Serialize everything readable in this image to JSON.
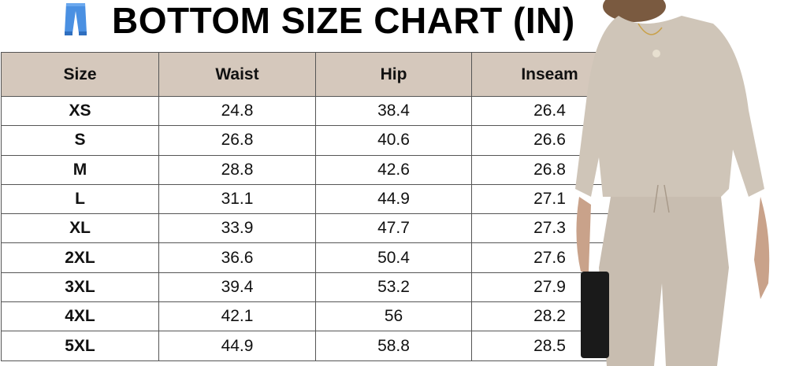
{
  "title": "BOTTOM SIZE CHART (IN)",
  "title_icon": "jeans-icon",
  "colors": {
    "header_bg": "#d5c8bc",
    "border": "#555555",
    "pants": "#4a90e2",
    "garment": "#cfc5b8"
  },
  "table": {
    "headers": [
      "Size",
      "Waist",
      "Hip",
      "Inseam"
    ],
    "rows": [
      [
        "XS",
        "24.8",
        "38.4",
        "26.4"
      ],
      [
        "S",
        "26.8",
        "40.6",
        "26.6"
      ],
      [
        "M",
        "28.8",
        "42.6",
        "26.8"
      ],
      [
        "L",
        "31.1",
        "44.9",
        "27.1"
      ],
      [
        "XL",
        "33.9",
        "47.7",
        "27.3"
      ],
      [
        "2XL",
        "36.6",
        "50.4",
        "27.6"
      ],
      [
        "3XL",
        "39.4",
        "53.2",
        "27.9"
      ],
      [
        "4XL",
        "42.1",
        "56",
        "28.2"
      ],
      [
        "5XL",
        "44.9",
        "58.8",
        "28.5"
      ]
    ]
  }
}
